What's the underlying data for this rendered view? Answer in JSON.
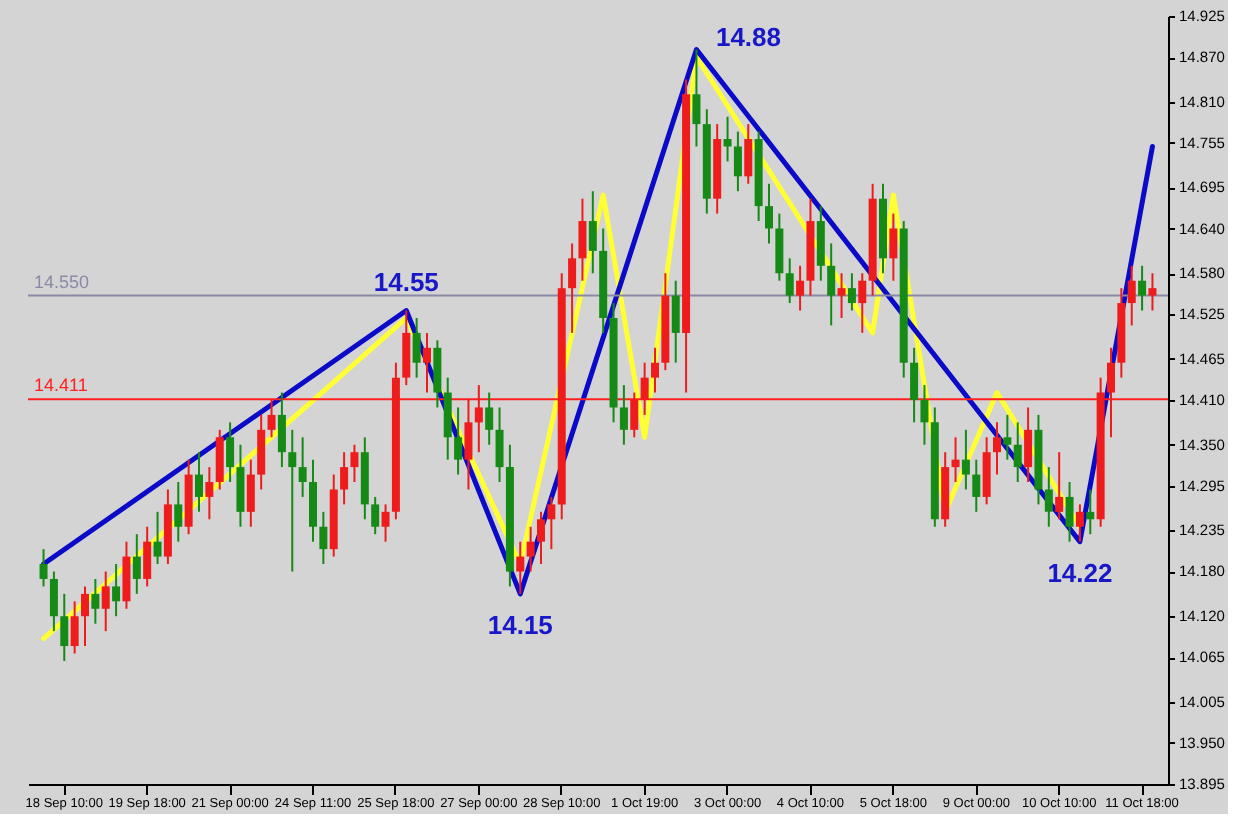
{
  "chart_data": {
    "type": "candlestick",
    "categories": [
      null,
      null,
      "18 Sep 10:00",
      null,
      null,
      null,
      null,
      null,
      null,
      null,
      "19 Sep 18:00",
      null,
      null,
      null,
      null,
      null,
      null,
      null,
      "21 Sep 00:00",
      null,
      null,
      null,
      null,
      null,
      null,
      null,
      "24 Sep 11:00",
      null,
      null,
      null,
      null,
      null,
      null,
      null,
      "25 Sep 18:00",
      null,
      null,
      null,
      null,
      null,
      null,
      null,
      "27 Sep 00:00",
      null,
      null,
      null,
      null,
      null,
      null,
      null,
      "28 Sep 10:00",
      null,
      null,
      null,
      null,
      null,
      null,
      null,
      "1 Oct 19:00",
      null,
      null,
      null,
      null,
      null,
      null,
      null,
      "3 Oct 00:00",
      null,
      null,
      null,
      null,
      null,
      null,
      null,
      "4 Oct 10:00",
      null,
      null,
      null,
      null,
      null,
      null,
      null,
      "5 Oct 18:00",
      null,
      null,
      null,
      null,
      null,
      null,
      null,
      "9 Oct 00:00",
      null,
      null,
      null,
      null,
      null,
      null,
      null,
      "10 Oct 10:00",
      null,
      null,
      null,
      null,
      null,
      null,
      null,
      "11 Oct 18:00",
      null
    ],
    "ohlc": [
      [
        14.19,
        14.21,
        14.16,
        14.17
      ],
      [
        14.17,
        14.18,
        14.1,
        14.12
      ],
      [
        14.12,
        14.15,
        14.06,
        14.08
      ],
      [
        14.08,
        14.14,
        14.07,
        14.12
      ],
      [
        14.12,
        14.16,
        14.08,
        14.15
      ],
      [
        14.15,
        14.17,
        14.11,
        14.13
      ],
      [
        14.13,
        14.18,
        14.1,
        14.16
      ],
      [
        14.16,
        14.19,
        14.12,
        14.14
      ],
      [
        14.14,
        14.22,
        14.13,
        14.2
      ],
      [
        14.2,
        14.23,
        14.15,
        14.17
      ],
      [
        14.17,
        14.24,
        14.16,
        14.22
      ],
      [
        14.22,
        14.26,
        14.19,
        14.2
      ],
      [
        14.2,
        14.29,
        14.19,
        14.27
      ],
      [
        14.27,
        14.3,
        14.22,
        14.24
      ],
      [
        14.24,
        14.33,
        14.23,
        14.31
      ],
      [
        14.31,
        14.34,
        14.26,
        14.28
      ],
      [
        14.28,
        14.32,
        14.25,
        14.3
      ],
      [
        14.3,
        14.37,
        14.29,
        14.36
      ],
      [
        14.36,
        14.38,
        14.3,
        14.32
      ],
      [
        14.32,
        14.35,
        14.24,
        14.26
      ],
      [
        14.26,
        14.33,
        14.24,
        14.31
      ],
      [
        14.31,
        14.39,
        14.29,
        14.37
      ],
      [
        14.37,
        14.41,
        14.36,
        14.39
      ],
      [
        14.39,
        14.42,
        14.32,
        14.34
      ],
      [
        14.34,
        14.37,
        14.18,
        14.32
      ],
      [
        14.32,
        14.36,
        14.28,
        14.3
      ],
      [
        14.3,
        14.33,
        14.22,
        14.24
      ],
      [
        14.24,
        14.26,
        14.19,
        14.21
      ],
      [
        14.21,
        14.31,
        14.2,
        14.29
      ],
      [
        14.29,
        14.34,
        14.27,
        14.32
      ],
      [
        14.32,
        14.35,
        14.3,
        14.34
      ],
      [
        14.34,
        14.36,
        14.25,
        14.27
      ],
      [
        14.27,
        14.28,
        14.23,
        14.24
      ],
      [
        14.24,
        14.27,
        14.22,
        14.26
      ],
      [
        14.26,
        14.46,
        14.25,
        14.44
      ],
      [
        14.44,
        14.53,
        14.43,
        14.5
      ],
      [
        14.5,
        14.52,
        14.44,
        14.46
      ],
      [
        14.46,
        14.5,
        14.42,
        14.48
      ],
      [
        14.48,
        14.49,
        14.4,
        14.42
      ],
      [
        14.42,
        14.44,
        14.33,
        14.36
      ],
      [
        14.36,
        14.4,
        14.31,
        14.33
      ],
      [
        14.33,
        14.41,
        14.29,
        14.38
      ],
      [
        14.38,
        14.43,
        14.34,
        14.4
      ],
      [
        14.4,
        14.42,
        14.35,
        14.37
      ],
      [
        14.37,
        14.4,
        14.3,
        14.32
      ],
      [
        14.32,
        14.35,
        14.16,
        14.18
      ],
      [
        14.18,
        14.22,
        14.15,
        14.2
      ],
      [
        14.2,
        14.24,
        14.18,
        14.22
      ],
      [
        14.22,
        14.26,
        14.19,
        14.25
      ],
      [
        14.25,
        14.28,
        14.21,
        14.27
      ],
      [
        14.27,
        14.58,
        14.25,
        14.56
      ],
      [
        14.56,
        14.62,
        14.5,
        14.6
      ],
      [
        14.6,
        14.68,
        14.57,
        14.65
      ],
      [
        14.65,
        14.69,
        14.58,
        14.61
      ],
      [
        14.61,
        14.64,
        14.5,
        14.52
      ],
      [
        14.52,
        14.54,
        14.38,
        14.4
      ],
      [
        14.4,
        14.43,
        14.35,
        14.37
      ],
      [
        14.37,
        14.42,
        14.36,
        14.41
      ],
      [
        14.41,
        14.46,
        14.39,
        14.44
      ],
      [
        14.44,
        14.48,
        14.42,
        14.46
      ],
      [
        14.46,
        14.58,
        14.45,
        14.55
      ],
      [
        14.55,
        14.57,
        14.46,
        14.5
      ],
      [
        14.5,
        14.84,
        14.42,
        14.82
      ],
      [
        14.82,
        14.88,
        14.75,
        14.78
      ],
      [
        14.78,
        14.8,
        14.66,
        14.68
      ],
      [
        14.68,
        14.78,
        14.66,
        14.76
      ],
      [
        14.76,
        14.79,
        14.73,
        14.75
      ],
      [
        14.75,
        14.77,
        14.69,
        14.71
      ],
      [
        14.71,
        14.78,
        14.7,
        14.76
      ],
      [
        14.76,
        14.77,
        14.65,
        14.67
      ],
      [
        14.67,
        14.7,
        14.62,
        14.64
      ],
      [
        14.64,
        14.66,
        14.57,
        14.58
      ],
      [
        14.58,
        14.6,
        14.54,
        14.55
      ],
      [
        14.55,
        14.59,
        14.53,
        14.57
      ],
      [
        14.57,
        14.68,
        14.55,
        14.65
      ],
      [
        14.65,
        14.67,
        14.57,
        14.59
      ],
      [
        14.59,
        14.62,
        14.51,
        14.55
      ],
      [
        14.55,
        14.58,
        14.52,
        14.56
      ],
      [
        14.56,
        14.58,
        14.53,
        14.54
      ],
      [
        14.54,
        14.58,
        14.5,
        14.57
      ],
      [
        14.57,
        14.7,
        14.55,
        14.68
      ],
      [
        14.68,
        14.7,
        14.58,
        14.6
      ],
      [
        14.6,
        14.66,
        14.57,
        14.64
      ],
      [
        14.64,
        14.65,
        14.44,
        14.46
      ],
      [
        14.46,
        14.48,
        14.38,
        14.41
      ],
      [
        14.41,
        14.43,
        14.35,
        14.38
      ],
      [
        14.38,
        14.4,
        14.24,
        14.25
      ],
      [
        14.25,
        14.34,
        14.24,
        14.32
      ],
      [
        14.32,
        14.36,
        14.3,
        14.33
      ],
      [
        14.33,
        14.37,
        14.29,
        14.31
      ],
      [
        14.31,
        14.33,
        14.26,
        14.28
      ],
      [
        14.28,
        14.36,
        14.27,
        14.34
      ],
      [
        14.34,
        14.38,
        14.31,
        14.36
      ],
      [
        14.36,
        14.39,
        14.33,
        14.35
      ],
      [
        14.35,
        14.38,
        14.3,
        14.32
      ],
      [
        14.32,
        14.4,
        14.3,
        14.37
      ],
      [
        14.37,
        14.39,
        14.27,
        14.29
      ],
      [
        14.29,
        14.32,
        14.24,
        14.26
      ],
      [
        14.26,
        14.34,
        14.25,
        14.28
      ],
      [
        14.28,
        14.3,
        14.22,
        14.24
      ],
      [
        14.24,
        14.27,
        14.22,
        14.26
      ],
      [
        14.26,
        14.29,
        14.23,
        14.25
      ],
      [
        14.25,
        14.44,
        14.24,
        14.42
      ],
      [
        14.42,
        14.48,
        14.36,
        14.46
      ],
      [
        14.46,
        14.56,
        14.44,
        14.54
      ],
      [
        14.54,
        14.59,
        14.51,
        14.57
      ],
      [
        14.57,
        14.59,
        14.53,
        14.55
      ],
      [
        14.55,
        14.58,
        14.53,
        14.56
      ]
    ],
    "colors": [
      "#168a16",
      "#168a16",
      "#168a16",
      "#ee1c1c",
      "#ee1c1c",
      "#168a16",
      "#ee1c1c",
      "#168a16",
      "#ee1c1c",
      "#168a16",
      "#ee1c1c",
      "#168a16",
      "#ee1c1c",
      "#168a16",
      "#ee1c1c",
      "#168a16",
      "#ee1c1c",
      "#ee1c1c",
      "#168a16",
      "#168a16",
      "#ee1c1c",
      "#ee1c1c",
      "#ee1c1c",
      "#168a16",
      "#168a16",
      "#168a16",
      "#168a16",
      "#168a16",
      "#ee1c1c",
      "#ee1c1c",
      "#ee1c1c",
      "#168a16",
      "#168a16",
      "#ee1c1c",
      "#ee1c1c",
      "#ee1c1c",
      "#168a16",
      "#ee1c1c",
      "#168a16",
      "#168a16",
      "#168a16",
      "#ee1c1c",
      "#ee1c1c",
      "#168a16",
      "#168a16",
      "#168a16",
      "#ee1c1c",
      "#ee1c1c",
      "#ee1c1c",
      "#ee1c1c",
      "#ee1c1c",
      "#ee1c1c",
      "#ee1c1c",
      "#168a16",
      "#168a16",
      "#168a16",
      "#168a16",
      "#ee1c1c",
      "#ee1c1c",
      "#ee1c1c",
      "#ee1c1c",
      "#168a16",
      "#ee1c1c",
      "#168a16",
      "#168a16",
      "#ee1c1c",
      "#168a16",
      "#168a16",
      "#ee1c1c",
      "#168a16",
      "#168a16",
      "#168a16",
      "#168a16",
      "#ee1c1c",
      "#ee1c1c",
      "#168a16",
      "#168a16",
      "#ee1c1c",
      "#168a16",
      "#ee1c1c",
      "#ee1c1c",
      "#168a16",
      "#ee1c1c",
      "#168a16",
      "#168a16",
      "#168a16",
      "#168a16",
      "#ee1c1c",
      "#ee1c1c",
      "#168a16",
      "#168a16",
      "#ee1c1c",
      "#ee1c1c",
      "#168a16",
      "#168a16",
      "#ee1c1c",
      "#168a16",
      "#168a16",
      "#ee1c1c",
      "#168a16",
      "#ee1c1c",
      "#168a16",
      "#ee1c1c",
      "#ee1c1c",
      "#ee1c1c",
      "#ee1c1c",
      "#168a16",
      "#ee1c1c"
    ],
    "series": [
      {
        "type": "line",
        "color": "#ffff33",
        "values": [
          14.09,
          null,
          null,
          null,
          null,
          null,
          null,
          null,
          null,
          null,
          null,
          null,
          null,
          null,
          null,
          null,
          null,
          null,
          null,
          null,
          null,
          null,
          null,
          null,
          null,
          null,
          null,
          null,
          null,
          null,
          null,
          null,
          null,
          null,
          null,
          14.52,
          null,
          null,
          null,
          null,
          null,
          null,
          null,
          null,
          null,
          null,
          14.19,
          null,
          null,
          null,
          null,
          null,
          null,
          null,
          14.685,
          null,
          null,
          null,
          14.36,
          null,
          null,
          null,
          null,
          14.87,
          null,
          null,
          null,
          null,
          null,
          null,
          null,
          null,
          null,
          null,
          null,
          null,
          null,
          null,
          null,
          null,
          14.5,
          null,
          14.685,
          null,
          null,
          null,
          null,
          14.26,
          null,
          null,
          null,
          null,
          14.42,
          null,
          null,
          null,
          null,
          null,
          null,
          null,
          14.24,
          null,
          null,
          null,
          null,
          null,
          null,
          null
        ]
      },
      {
        "type": "line",
        "color": "#0a0ac8",
        "values": [
          14.19,
          null,
          null,
          null,
          null,
          null,
          null,
          null,
          null,
          null,
          null,
          null,
          null,
          null,
          null,
          null,
          null,
          null,
          null,
          null,
          null,
          null,
          null,
          null,
          null,
          null,
          null,
          null,
          null,
          null,
          null,
          null,
          null,
          null,
          null,
          14.53,
          null,
          null,
          null,
          null,
          null,
          null,
          null,
          null,
          null,
          null,
          14.15,
          null,
          null,
          null,
          null,
          null,
          null,
          null,
          null,
          null,
          null,
          null,
          null,
          null,
          null,
          null,
          null,
          14.88,
          null,
          null,
          null,
          null,
          null,
          null,
          null,
          null,
          null,
          null,
          null,
          null,
          null,
          null,
          null,
          null,
          null,
          null,
          null,
          null,
          null,
          null,
          null,
          null,
          null,
          null,
          null,
          null,
          null,
          null,
          null,
          null,
          null,
          null,
          null,
          null,
          14.22,
          null,
          null,
          null,
          null,
          null,
          null,
          14.75
        ]
      }
    ],
    "ref_lines": [
      {
        "axis": "y",
        "value": 14.55,
        "label": "14.550",
        "color": "#8a8aa8"
      },
      {
        "axis": "y",
        "value": 14.411,
        "label": "14.411",
        "color": "#ff2020"
      }
    ],
    "annotations": [
      "14.55",
      "14.15",
      "14.88",
      "14.22"
    ],
    "ylim": [
      13.895,
      14.925
    ],
    "yticks": [
      {
        "value": 13.895,
        "label": "13.895"
      },
      {
        "value": 13.95,
        "label": "13.950"
      },
      {
        "value": 14.005,
        "label": "14.005"
      },
      {
        "value": 14.065,
        "label": "14.065"
      },
      {
        "value": 14.12,
        "label": "14.120"
      },
      {
        "value": 14.18,
        "label": "14.180"
      },
      {
        "value": 14.235,
        "label": "14.235"
      },
      {
        "value": 14.295,
        "label": "14.295"
      },
      {
        "value": 14.35,
        "label": "14.350"
      },
      {
        "value": 14.41,
        "label": "14.410"
      },
      {
        "value": 14.465,
        "label": "14.465"
      },
      {
        "value": 14.525,
        "label": "14.525"
      },
      {
        "value": 14.58,
        "label": "14.580"
      },
      {
        "value": 14.64,
        "label": "14.640"
      },
      {
        "value": 14.695,
        "label": "14.695"
      },
      {
        "value": 14.755,
        "label": "14.755"
      },
      {
        "value": 14.81,
        "label": "14.810"
      },
      {
        "value": 14.87,
        "label": "14.870"
      },
      {
        "value": 14.925,
        "label": "14.925"
      }
    ],
    "grid": false,
    "line_style": "solid"
  }
}
